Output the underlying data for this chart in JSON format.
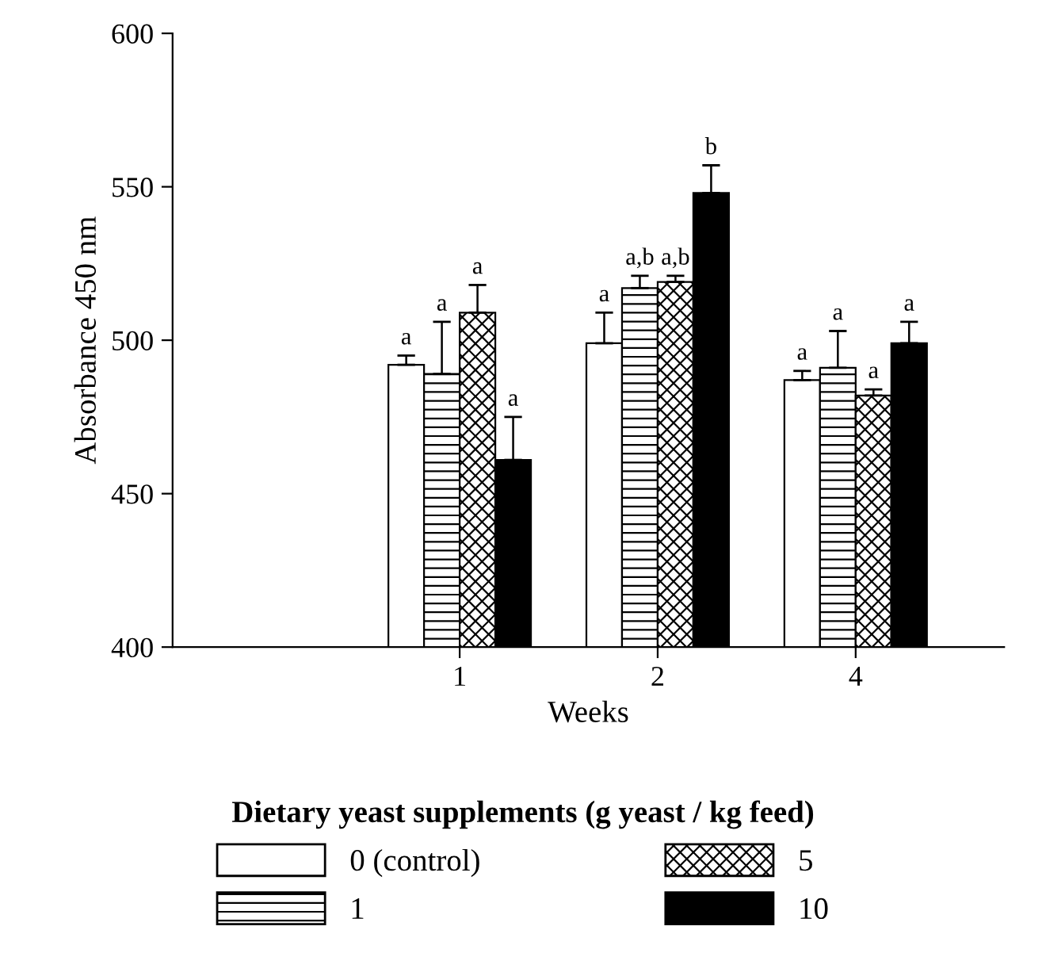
{
  "chart_data": {
    "type": "bar",
    "xlabel": "Weeks",
    "ylabel": "Absorbance 450 nm",
    "legend_title": "Dietary yeast supplements (g yeast / kg feed)",
    "legend": "bottom",
    "categories": [
      "1",
      "2",
      "4"
    ],
    "ylim": [
      400,
      600
    ],
    "yticks": [
      400,
      450,
      500,
      550,
      600
    ],
    "grid": false,
    "series": [
      {
        "name": "0 (control)",
        "color": "#ffffff",
        "values": [
          492,
          499,
          487
        ],
        "errors": [
          [
            492,
            495
          ],
          [
            499,
            509
          ],
          [
            487,
            490
          ]
        ],
        "value_labels": [
          "a",
          "a",
          "a"
        ]
      },
      {
        "name": "1",
        "color": "#000000",
        "values": [
          489,
          517,
          491
        ],
        "errors": [
          [
            489,
            506
          ],
          [
            517,
            521
          ],
          [
            491,
            503
          ]
        ],
        "value_labels": [
          "a",
          "a,b",
          "a"
        ]
      },
      {
        "name": "5",
        "color": "#000000",
        "values": [
          509,
          519,
          482
        ],
        "errors": [
          [
            509,
            518
          ],
          [
            519,
            521
          ],
          [
            482,
            484
          ]
        ],
        "value_labels": [
          "a",
          "a,b",
          "a"
        ]
      },
      {
        "name": "10",
        "color": "#000000",
        "values": [
          461,
          548,
          499
        ],
        "errors": [
          [
            461,
            475
          ],
          [
            548,
            557
          ],
          [
            499,
            506
          ]
        ],
        "value_labels": [
          "a",
          "b",
          "a"
        ]
      }
    ]
  }
}
